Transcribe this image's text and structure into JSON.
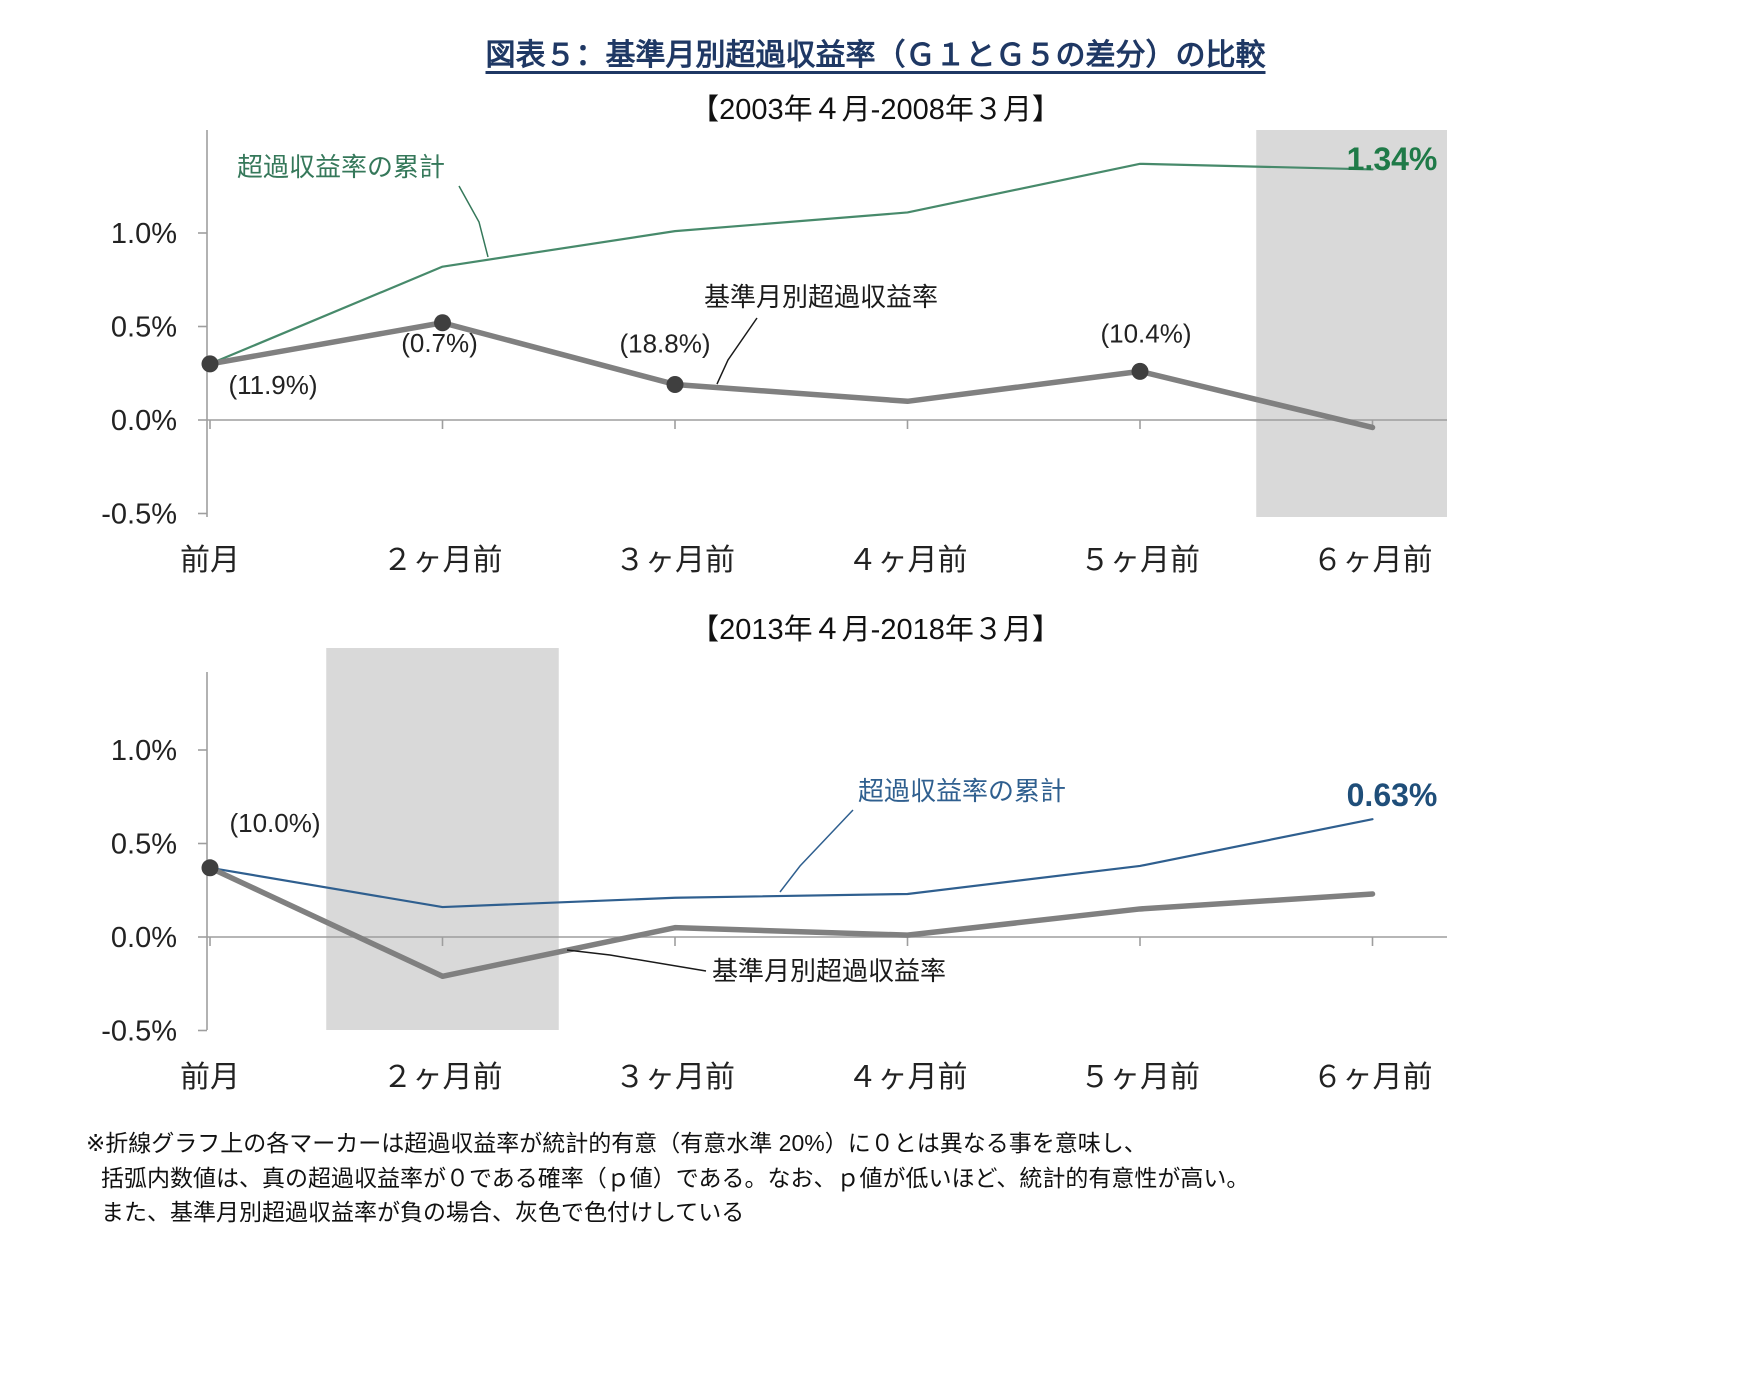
{
  "page": {
    "title": "図表５：基準月別超過収益率（Ｇ１とＧ５の差分）の比較",
    "footnote_lines": [
      "※折線グラフ上の各マーカーは超過収益率が統計的有意（有意水準 20%）に０とは異なる事を意味し、",
      "括弧内数値は、真の超過収益率が０である確率（ｐ値）である。なお、ｐ値が低いほど、統計的有意性が高い。",
      "また、基準月別超過収益率が負の場合、灰色で色付けしている"
    ]
  },
  "colors": {
    "title": "#1F3864",
    "axis": "#9E9E9E",
    "shade": "#D9D9D9",
    "marker": "#3F3F3F",
    "monthly_line": "#808080",
    "cumulative_green": "#478A6B",
    "cumulative_blue": "#2F5F8F"
  },
  "chart_data": [
    {
      "type": "line",
      "title": "【2003年４月-2008年３月】",
      "categories": [
        "前月",
        "２ヶ月前",
        "３ヶ月前",
        "４ヶ月前",
        "５ヶ月前",
        "６ヶ月前"
      ],
      "ylim": [
        -0.5,
        1.55
      ],
      "yticks": [
        1.0,
        0.5,
        0.0,
        -0.5
      ],
      "ytick_labels": [
        "1.0%",
        "0.5%",
        "0.0%",
        "-0.5%"
      ],
      "grid": "none",
      "legend_position": "inline-annotations",
      "series": [
        {
          "name": "超過収益率の累計",
          "values": [
            0.3,
            0.82,
            1.01,
            1.11,
            1.37,
            1.34
          ],
          "color": "#478A6B",
          "annotation_color": "#35785A"
        },
        {
          "name": "基準月別超過収益率",
          "values": [
            0.3,
            0.52,
            0.19,
            0.1,
            0.26,
            -0.04
          ],
          "color": "#808080",
          "annotation_color": "#1A1A1A",
          "marker_indices": [
            0,
            1,
            2,
            4
          ]
        }
      ],
      "p_value_labels": [
        {
          "category_index": 0,
          "text": "(11.9%)"
        },
        {
          "category_index": 1,
          "text": "(0.7%)"
        },
        {
          "category_index": 2,
          "text": "(18.8%)"
        },
        {
          "category_index": 4,
          "text": "(10.4%)"
        }
      ],
      "end_value_label": "1.34%",
      "end_value_color": "#1F7A48",
      "shaded_category_index": 5
    },
    {
      "type": "line",
      "title": "【2013年４月-2018年３月】",
      "categories": [
        "前月",
        "２ヶ月前",
        "３ヶ月前",
        "４ヶ月前",
        "５ヶ月前",
        "６ヶ月前"
      ],
      "ylim": [
        -0.5,
        1.42
      ],
      "yticks": [
        1.0,
        0.5,
        0.0,
        -0.5
      ],
      "ytick_labels": [
        "1.0%",
        "0.5%",
        "0.0%",
        "-0.5%"
      ],
      "grid": "none",
      "legend_position": "inline-annotations",
      "series": [
        {
          "name": "超過収益率の累計",
          "values": [
            0.37,
            0.16,
            0.21,
            0.23,
            0.38,
            0.63
          ],
          "color": "#2F5F8F",
          "annotation_color": "#2F5F8F"
        },
        {
          "name": "基準月別超過収益率",
          "values": [
            0.37,
            -0.21,
            0.05,
            0.01,
            0.15,
            0.23
          ],
          "color": "#808080",
          "annotation_color": "#1A1A1A",
          "marker_indices": [
            0
          ]
        }
      ],
      "p_value_labels": [
        {
          "category_index": 0,
          "text": "(10.0%)"
        }
      ],
      "end_value_label": "0.63%",
      "end_value_color": "#1F4E79",
      "shaded_category_index": 1
    }
  ]
}
